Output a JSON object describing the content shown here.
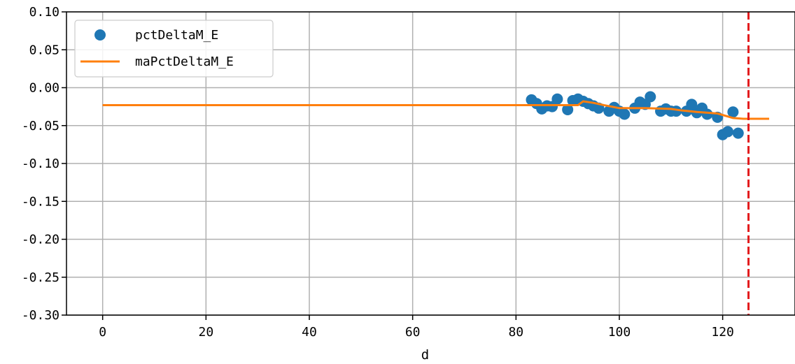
{
  "chart_data": {
    "type": "scatter",
    "xlabel": "d",
    "ylabel": "",
    "xlim": [
      -7,
      134
    ],
    "ylim": [
      -0.3,
      0.1
    ],
    "grid": true,
    "legend_position": "top-left",
    "x_ticks": [
      0,
      20,
      40,
      60,
      80,
      100,
      120
    ],
    "x_tick_labels": [
      "0",
      "20",
      "40",
      "60",
      "80",
      "100",
      "120"
    ],
    "y_ticks": [
      0.1,
      0.05,
      0.0,
      -0.05,
      -0.1,
      -0.15,
      -0.2,
      -0.25,
      -0.3
    ],
    "y_tick_labels": [
      "0.10",
      "0.05",
      "0.00",
      "-0.05",
      "-0.10",
      "-0.15",
      "-0.20",
      "-0.25",
      "-0.30"
    ],
    "series": [
      {
        "name": "pctDeltaM_E",
        "kind": "scatter",
        "color": "#1f77b4",
        "x": [
          83,
          84,
          85,
          86,
          87,
          88,
          90,
          91,
          92,
          93,
          94,
          95,
          96,
          98,
          99,
          100,
          101,
          103,
          104,
          105,
          106,
          108,
          109,
          110,
          111,
          113,
          114,
          115,
          116,
          117,
          119,
          120,
          121,
          122,
          123
        ],
        "y": [
          -0.016,
          -0.021,
          -0.028,
          -0.024,
          -0.025,
          -0.015,
          -0.029,
          -0.017,
          -0.015,
          -0.018,
          -0.021,
          -0.024,
          -0.027,
          -0.031,
          -0.026,
          -0.031,
          -0.035,
          -0.027,
          -0.019,
          -0.022,
          -0.012,
          -0.031,
          -0.028,
          -0.031,
          -0.031,
          -0.031,
          -0.022,
          -0.033,
          -0.027,
          -0.035,
          -0.039,
          -0.062,
          -0.058,
          -0.032,
          -0.06
        ]
      },
      {
        "name": "maPctDeltaM_E",
        "kind": "line",
        "color": "#ff7f0e",
        "x": [
          0,
          92,
          93,
          95,
          97,
          100,
          105,
          110,
          112,
          115,
          119,
          122,
          124,
          129
        ],
        "y": [
          -0.023,
          -0.023,
          -0.018,
          -0.02,
          -0.023,
          -0.027,
          -0.027,
          -0.028,
          -0.03,
          -0.032,
          -0.034,
          -0.04,
          -0.041,
          -0.041
        ]
      }
    ],
    "vline": {
      "x": 125,
      "color": "#e31a1c",
      "style": "dashed"
    }
  }
}
